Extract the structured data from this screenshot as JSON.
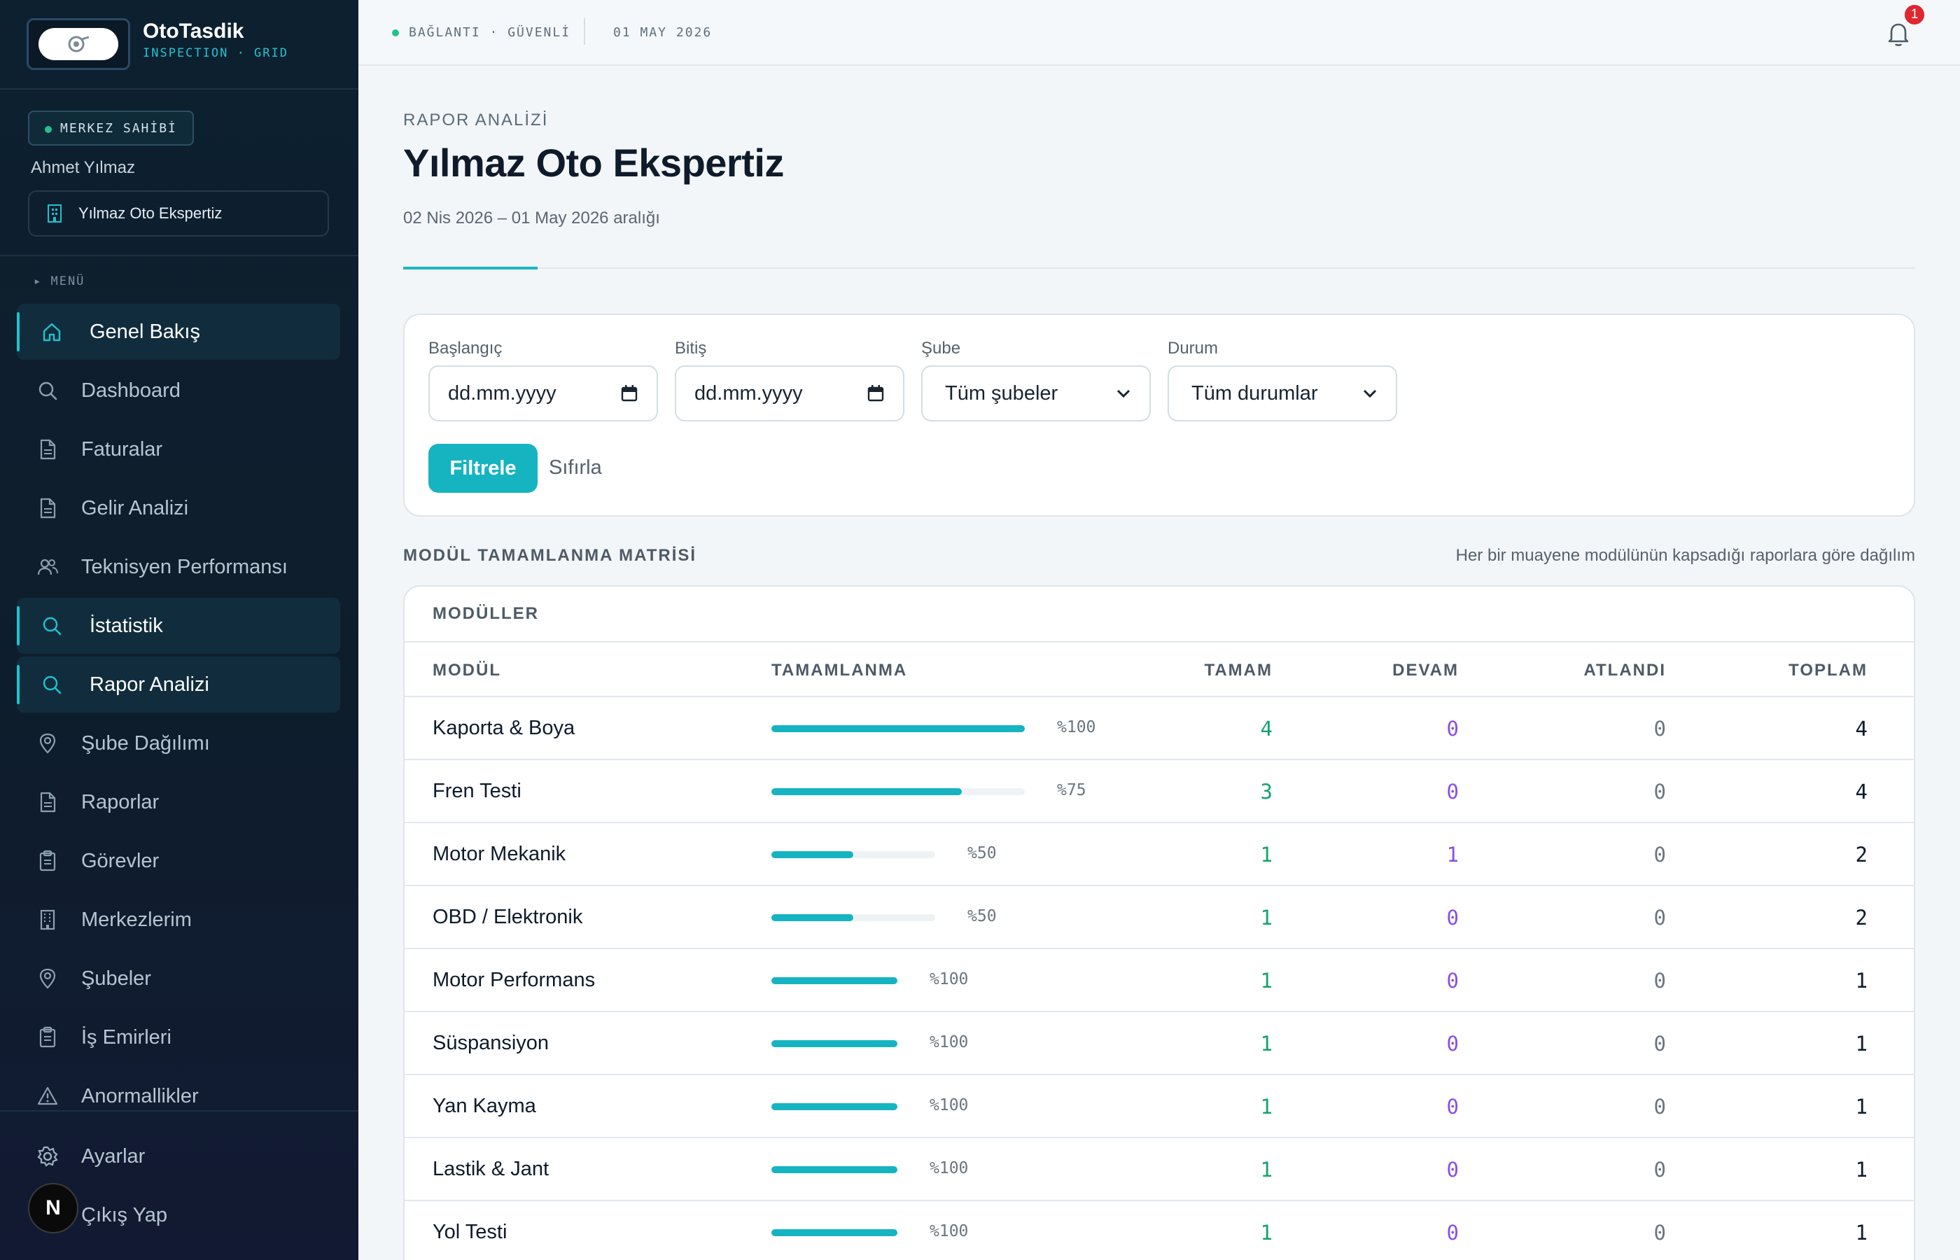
{
  "brand": {
    "title": "OtoTasdik",
    "subtitle": "INSPECTION · GRID"
  },
  "owner": {
    "role": "MERKEZ SAHİBİ",
    "name": "Ahmet Yılmaz",
    "center": "Yılmaz Oto Ekspertiz"
  },
  "menu_label": "▸ MENÜ",
  "menu": [
    {
      "label": "Genel Bakış",
      "icon": "home-icon",
      "active": true
    },
    {
      "label": "Dashboard",
      "icon": "search-icon",
      "active": false
    },
    {
      "label": "Faturalar",
      "icon": "document-icon",
      "active": false
    },
    {
      "label": "Gelir Analizi",
      "icon": "document-icon",
      "active": false
    },
    {
      "label": "Teknisyen Performansı",
      "icon": "users-icon",
      "active": false
    },
    {
      "label": "İstatistik",
      "icon": "search-icon",
      "active": true
    },
    {
      "label": "Rapor Analizi",
      "icon": "search-icon",
      "active": true
    },
    {
      "label": "Şube Dağılımı",
      "icon": "map-pin-icon",
      "active": false
    },
    {
      "label": "Raporlar",
      "icon": "document-icon",
      "active": false
    },
    {
      "label": "Görevler",
      "icon": "clipboard-icon",
      "active": false
    },
    {
      "label": "Merkezlerim",
      "icon": "building-icon",
      "active": false
    },
    {
      "label": "Şubeler",
      "icon": "map-pin-icon",
      "active": false
    },
    {
      "label": "İş Emirleri",
      "icon": "clipboard-icon",
      "active": false
    },
    {
      "label": "Anormallikler",
      "icon": "warning-icon",
      "active": false
    }
  ],
  "bottom_menu": {
    "settings": "Ayarlar",
    "logout": "Çıkış Yap",
    "avatar_letter": "N"
  },
  "topbar": {
    "connection": "BAĞLANTI · GÜVENLİ",
    "date": "01 MAY 2026",
    "notification_count": "1"
  },
  "page": {
    "eyebrow": "RAPOR ANALİZİ",
    "title": "Yılmaz Oto Ekspertiz",
    "subtitle": "02 Nis 2026 – 01 May 2026 aralığı"
  },
  "filters": {
    "start_label": "Başlangıç",
    "start_value": "dd.mm.yyyy",
    "end_label": "Bitiş",
    "end_value": "dd.mm.yyyy",
    "branch_label": "Şube",
    "branch_value": "Tüm şubeler",
    "status_label": "Durum",
    "status_value": "Tüm durumlar",
    "apply": "Filtrele",
    "reset": "Sıfırla"
  },
  "matrix": {
    "title": "MODÜL TAMAMLANMA MATRİSİ",
    "hint": "Her bir muayene modülünün kapsadığı raporlara göre dağılım",
    "card_title": "MODÜLLER",
    "columns": [
      "MODÜL",
      "TAMAMLANMA",
      "TAMAM",
      "DEVAM",
      "ATLANDI",
      "TOPLAM"
    ],
    "rows": [
      {
        "name": "Kaporta & Boya",
        "percent": "%100",
        "ratio": 1.0,
        "done": "4",
        "in_progress": "0",
        "skipped": "0",
        "total": "4"
      },
      {
        "name": "Fren Testi",
        "percent": "%75",
        "ratio": 0.75,
        "done": "3",
        "in_progress": "0",
        "skipped": "0",
        "total": "4"
      },
      {
        "name": "Motor Mekanik",
        "percent": "%50",
        "ratio": 0.5,
        "done": "1",
        "in_progress": "1",
        "skipped": "0",
        "total": "2"
      },
      {
        "name": "OBD / Elektronik",
        "percent": "%50",
        "ratio": 0.5,
        "done": "1",
        "in_progress": "0",
        "skipped": "0",
        "total": "2"
      },
      {
        "name": "Motor Performans",
        "percent": "%100",
        "ratio": 1.0,
        "done": "1",
        "in_progress": "0",
        "skipped": "0",
        "total": "1"
      },
      {
        "name": "Süspansiyon",
        "percent": "%100",
        "ratio": 1.0,
        "done": "1",
        "in_progress": "0",
        "skipped": "0",
        "total": "1"
      },
      {
        "name": "Yan Kayma",
        "percent": "%100",
        "ratio": 1.0,
        "done": "1",
        "in_progress": "0",
        "skipped": "0",
        "total": "1"
      },
      {
        "name": "Lastik & Jant",
        "percent": "%100",
        "ratio": 1.0,
        "done": "1",
        "in_progress": "0",
        "skipped": "0",
        "total": "1"
      },
      {
        "name": "Yol Testi",
        "percent": "%100",
        "ratio": 1.0,
        "done": "1",
        "in_progress": "0",
        "skipped": "0",
        "total": "1"
      }
    ]
  },
  "colors": {
    "accent": "#16b4c1",
    "done": "#14a36c",
    "in_progress": "#8a4fe0",
    "alert": "#e0262f"
  }
}
